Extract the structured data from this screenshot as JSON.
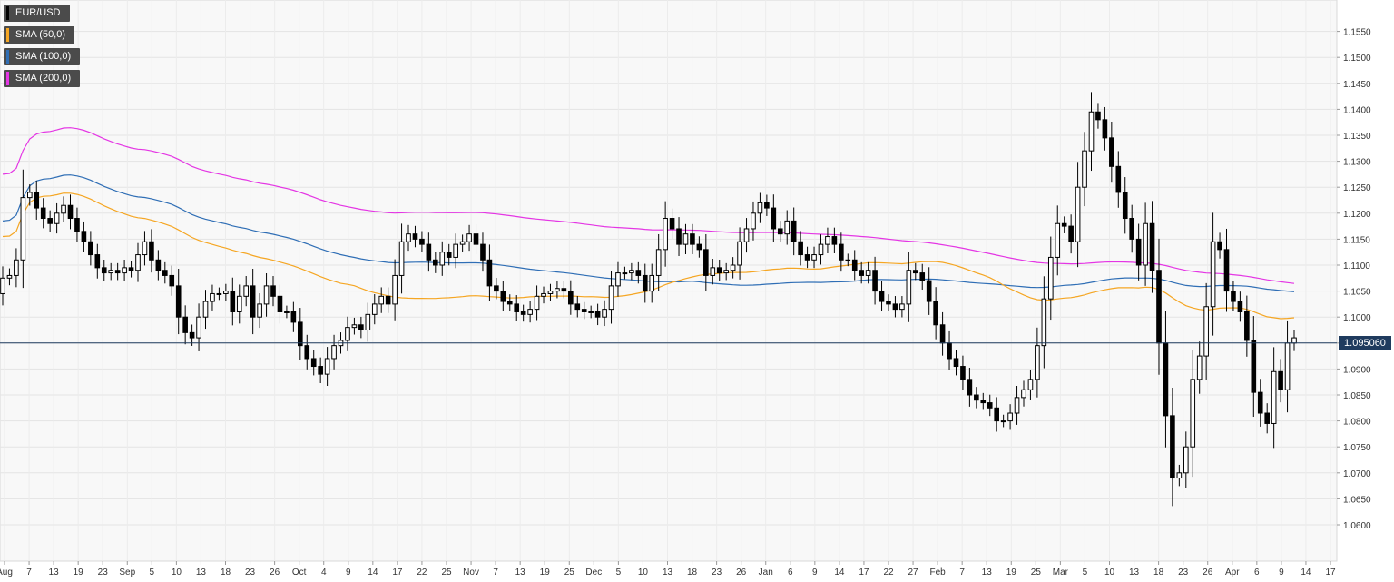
{
  "chart_data": {
    "type": "candlestick",
    "symbol": "EUR/USD",
    "ylim": [
      1.055,
      1.159
    ],
    "y_ticks": [
      "1.0600",
      "1.0650",
      "1.0700",
      "1.0750",
      "1.0800",
      "1.0850",
      "1.0900",
      "1.0950",
      "1.1000",
      "1.1050",
      "1.1100",
      "1.1150",
      "1.1200",
      "1.1250",
      "1.1300",
      "1.1350",
      "1.1400",
      "1.1450",
      "1.1500",
      "1.1550"
    ],
    "x_ticks": [
      "Aug",
      "7",
      "13",
      "19",
      "23",
      "Sep",
      "5",
      "10",
      "13",
      "18",
      "23",
      "26",
      "Oct",
      "4",
      "9",
      "14",
      "17",
      "22",
      "25",
      "Nov",
      "7",
      "13",
      "19",
      "25",
      "Dec",
      "5",
      "10",
      "13",
      "18",
      "23",
      "26",
      "Jan",
      "6",
      "9",
      "14",
      "17",
      "22",
      "27",
      "Feb",
      "7",
      "13",
      "19",
      "25",
      "Mar",
      "5",
      "10",
      "13",
      "18",
      "23",
      "26",
      "Apr",
      "6",
      "9",
      "14",
      "17"
    ],
    "current_price": 1.095,
    "current_price_label": "1.095060",
    "grid": true,
    "legend_position": "top-left",
    "legend": [
      {
        "label": "EUR/USD",
        "color": "#000000"
      },
      {
        "label": "SMA (50,0)",
        "color": "#f5a623"
      },
      {
        "label": "SMA (100,0)",
        "color": "#2f6eb5"
      },
      {
        "label": "SMA (200,0)",
        "color": "#e436e4"
      }
    ],
    "candles_close": [
      1.1075,
      1.108,
      1.111,
      1.123,
      1.124,
      1.121,
      1.119,
      1.118,
      1.12,
      1.1215,
      1.119,
      1.1165,
      1.1145,
      1.112,
      1.1095,
      1.1085,
      1.109,
      1.1085,
      1.1095,
      1.109,
      1.112,
      1.1145,
      1.111,
      1.109,
      1.108,
      1.106,
      1.1,
      1.097,
      1.096,
      1.1,
      1.103,
      1.1045,
      1.1045,
      1.105,
      1.101,
      1.104,
      1.106,
      1.1,
      1.1025,
      1.106,
      1.104,
      1.101,
      1.101,
      1.099,
      1.0945,
      1.092,
      1.0905,
      1.089,
      1.092,
      1.0945,
      1.0955,
      1.098,
      1.0985,
      1.0975,
      1.1005,
      1.1025,
      1.104,
      1.1025,
      1.108,
      1.1145,
      1.116,
      1.115,
      1.114,
      1.111,
      1.11,
      1.1125,
      1.1115,
      1.114,
      1.1145,
      1.116,
      1.114,
      1.111,
      1.106,
      1.105,
      1.103,
      1.1025,
      1.101,
      1.1005,
      1.1015,
      1.104,
      1.1045,
      1.105,
      1.1055,
      1.105,
      1.1025,
      1.1015,
      1.101,
      1.101,
      1.1,
      1.1015,
      1.106,
      1.1085,
      1.1085,
      1.109,
      1.108,
      1.105,
      1.108,
      1.113,
      1.119,
      1.117,
      1.114,
      1.116,
      1.114,
      1.113,
      1.108,
      1.1095,
      1.1085,
      1.109,
      1.11,
      1.1145,
      1.117,
      1.12,
      1.122,
      1.121,
      1.117,
      1.116,
      1.1185,
      1.1145,
      1.112,
      1.111,
      1.112,
      1.114,
      1.1155,
      1.114,
      1.111,
      1.111,
      1.109,
      1.108,
      1.109,
      1.105,
      1.103,
      1.1025,
      1.1015,
      1.1025,
      1.109,
      1.1085,
      1.107,
      1.103,
      1.0985,
      1.095,
      1.092,
      1.0905,
      1.088,
      1.085,
      1.084,
      1.0835,
      1.0825,
      1.08,
      1.08,
      1.0815,
      1.0845,
      1.086,
      1.088,
      1.0945,
      1.1035,
      1.1115,
      1.118,
      1.1175,
      1.1145,
      1.125,
      1.132,
      1.1395,
      1.138,
      1.1345,
      1.129,
      1.124,
      1.119,
      1.115,
      1.11,
      1.118,
      1.109,
      1.095,
      1.081,
      1.069,
      1.07,
      1.075,
      1.088,
      1.0925,
      1.102,
      1.1145,
      1.113,
      1.105,
      1.103,
      1.101,
      1.0955,
      1.0855,
      1.0815,
      1.0795,
      1.0895,
      1.086,
      1.095,
      1.096
    ]
  }
}
